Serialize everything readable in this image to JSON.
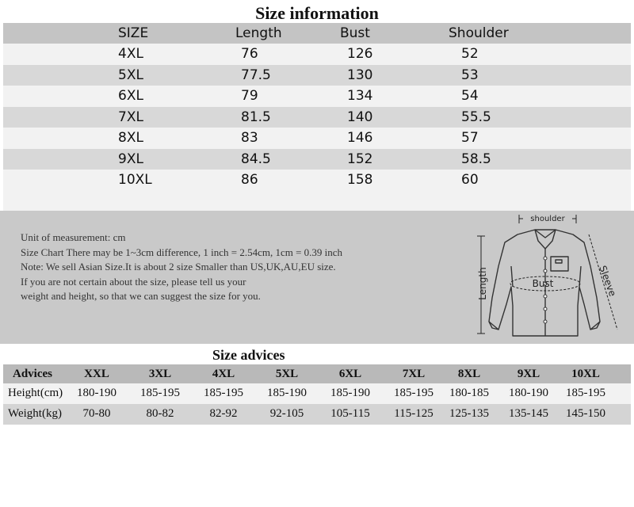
{
  "size_information": {
    "title": "Size information",
    "headers": [
      "SIZE",
      "Length",
      "Bust",
      "Shoulder"
    ],
    "rows": [
      [
        "4XL",
        "76",
        "126",
        "52"
      ],
      [
        "5XL",
        "77.5",
        "130",
        "53"
      ],
      [
        "6XL",
        "79",
        "134",
        "54"
      ],
      [
        "7XL",
        "81.5",
        "140",
        "55.5"
      ],
      [
        "8XL",
        "83",
        "146",
        "57"
      ],
      [
        "9XL",
        "84.5",
        "152",
        "58.5"
      ],
      [
        "10XL",
        "86",
        "158",
        "60"
      ]
    ]
  },
  "notes": {
    "lines": [
      "Unit of measurement: cm",
      "Size Chart There may be 1~3cm difference, 1 inch = 2.54cm, 1cm = 0.39 inch",
      "Note: We sell Asian Size.It is about 2 size Smaller than US,UK,AU,EU size.",
      "If you are not    certain about the size,  please tell us your",
      "weight and height, so that we can suggest the size for you."
    ]
  },
  "diagram": {
    "shoulder_label": "shoulder",
    "length_label": "Length",
    "bust_label": "Bust",
    "sleeve_label": "Sleeve"
  },
  "size_advices": {
    "title": "Size advices",
    "headers": [
      "Advices",
      "XXL",
      "3XL",
      "4XL",
      "5XL",
      "6XL",
      "7XL",
      "8XL",
      "9XL",
      "10XL"
    ],
    "rows": [
      [
        "Height(cm)",
        "180-190",
        "185-195",
        "185-195",
        "185-190",
        "185-190",
        "185-195",
        "180-185",
        "180-190",
        "185-195"
      ],
      [
        "Weight(kg)",
        "70-80",
        "80-82",
        "82-92",
        "92-105",
        "105-115",
        "115-125",
        "125-135",
        "135-145",
        "145-150"
      ]
    ]
  }
}
